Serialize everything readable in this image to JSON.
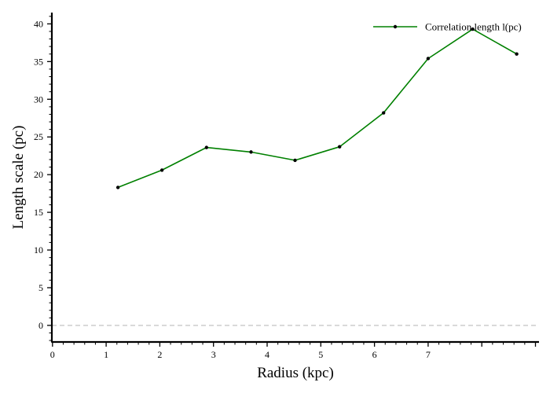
{
  "chart_data": {
    "type": "line",
    "title": "",
    "xlabel": "Radius (kpc)",
    "ylabel": "Length scale (pc)",
    "xlim": [
      0,
      9
    ],
    "ylim": [
      -2.2,
      41.5
    ],
    "xticks": [
      0,
      1,
      2,
      3,
      4,
      5,
      6,
      7
    ],
    "yticks": [
      0,
      5,
      10,
      15,
      20,
      25,
      30,
      35,
      40
    ],
    "grid": false,
    "legend_position": "top-right",
    "reference_line": {
      "y": 0,
      "style": "dashed",
      "color": "#c8c8c8"
    },
    "series": [
      {
        "name": "Correlation length l(pc)",
        "color": "#008000",
        "marker": "dot",
        "x": [
          1.22,
          2.04,
          2.87,
          3.7,
          4.52,
          5.35,
          6.17,
          7.0,
          7.83,
          8.65
        ],
        "y": [
          18.3,
          20.6,
          23.6,
          23.0,
          21.9,
          23.7,
          28.2,
          35.4,
          39.3,
          36.0
        ]
      }
    ]
  }
}
